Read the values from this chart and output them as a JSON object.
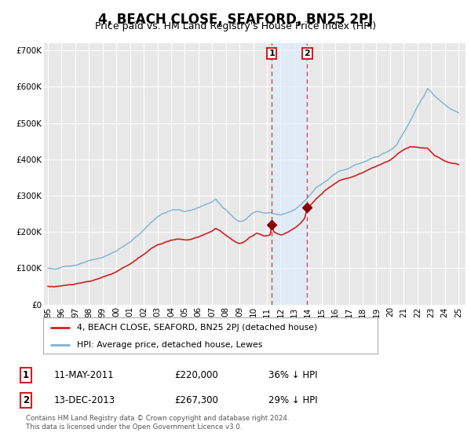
{
  "title": "4, BEACH CLOSE, SEAFORD, BN25 2PJ",
  "subtitle": "Price paid vs. HM Land Registry's House Price Index (HPI)",
  "title_fontsize": 12,
  "subtitle_fontsize": 9,
  "background_color": "#ffffff",
  "plot_bg_color": "#e8e8e8",
  "grid_color": "#ffffff",
  "ylim": [
    0,
    720000
  ],
  "yticks": [
    0,
    100000,
    200000,
    300000,
    400000,
    500000,
    600000,
    700000
  ],
  "ytick_labels": [
    "£0",
    "£100K",
    "£200K",
    "£300K",
    "£400K",
    "£500K",
    "£600K",
    "£700K"
  ],
  "hpi_color": "#7ab3d4",
  "price_color": "#cc2222",
  "marker_color": "#8b0000",
  "transaction1_x": 2011.36,
  "transaction2_x": 2013.95,
  "transaction1_price": 220000,
  "transaction2_price": 267300,
  "shade_color": "#ddeeff",
  "shade_alpha": 0.6,
  "legend_label1": "4, BEACH CLOSE, SEAFORD, BN25 2PJ (detached house)",
  "legend_label2": "HPI: Average price, detached house, Lewes",
  "table_row1_num": "1",
  "table_row1_date": "11-MAY-2011",
  "table_row1_price": "£220,000",
  "table_row1_hpi": "36% ↓ HPI",
  "table_row2_num": "2",
  "table_row2_date": "13-DEC-2013",
  "table_row2_price": "£267,300",
  "table_row2_hpi": "29% ↓ HPI",
  "footer": "Contains HM Land Registry data © Crown copyright and database right 2024.\nThis data is licensed under the Open Government Licence v3.0.",
  "xlim_start": 1994.7,
  "xlim_end": 2025.5,
  "hpi_points": [
    [
      1995,
      100000
    ],
    [
      1995.5,
      98000
    ],
    [
      1996,
      101000
    ],
    [
      1996.5,
      105000
    ],
    [
      1997,
      109000
    ],
    [
      1997.5,
      114000
    ],
    [
      1998,
      118000
    ],
    [
      1998.5,
      122000
    ],
    [
      1999,
      128000
    ],
    [
      1999.5,
      136000
    ],
    [
      2000,
      145000
    ],
    [
      2000.5,
      158000
    ],
    [
      2001,
      170000
    ],
    [
      2001.5,
      186000
    ],
    [
      2002,
      202000
    ],
    [
      2002.5,
      220000
    ],
    [
      2003,
      238000
    ],
    [
      2003.5,
      248000
    ],
    [
      2004,
      255000
    ],
    [
      2004.5,
      258000
    ],
    [
      2005,
      254000
    ],
    [
      2005.5,
      257000
    ],
    [
      2006,
      264000
    ],
    [
      2006.5,
      275000
    ],
    [
      2007,
      282000
    ],
    [
      2007.25,
      290000
    ],
    [
      2007.5,
      280000
    ],
    [
      2007.75,
      268000
    ],
    [
      2008,
      260000
    ],
    [
      2008.25,
      250000
    ],
    [
      2008.5,
      240000
    ],
    [
      2008.75,
      232000
    ],
    [
      2009,
      228000
    ],
    [
      2009.25,
      232000
    ],
    [
      2009.5,
      238000
    ],
    [
      2009.75,
      248000
    ],
    [
      2010,
      254000
    ],
    [
      2010.25,
      258000
    ],
    [
      2010.5,
      256000
    ],
    [
      2010.75,
      252000
    ],
    [
      2011,
      252000
    ],
    [
      2011.25,
      255000
    ],
    [
      2011.5,
      252000
    ],
    [
      2011.75,
      250000
    ],
    [
      2012,
      248000
    ],
    [
      2012.25,
      252000
    ],
    [
      2012.5,
      255000
    ],
    [
      2012.75,
      260000
    ],
    [
      2013,
      265000
    ],
    [
      2013.25,
      272000
    ],
    [
      2013.5,
      280000
    ],
    [
      2013.75,
      290000
    ],
    [
      2014,
      300000
    ],
    [
      2014.25,
      312000
    ],
    [
      2014.5,
      324000
    ],
    [
      2014.75,
      332000
    ],
    [
      2015,
      338000
    ],
    [
      2015.25,
      345000
    ],
    [
      2015.5,
      352000
    ],
    [
      2015.75,
      360000
    ],
    [
      2016,
      368000
    ],
    [
      2016.25,
      375000
    ],
    [
      2016.5,
      378000
    ],
    [
      2016.75,
      380000
    ],
    [
      2017,
      382000
    ],
    [
      2017.25,
      388000
    ],
    [
      2017.5,
      392000
    ],
    [
      2017.75,
      396000
    ],
    [
      2018,
      398000
    ],
    [
      2018.25,
      402000
    ],
    [
      2018.5,
      405000
    ],
    [
      2018.75,
      408000
    ],
    [
      2019,
      412000
    ],
    [
      2019.25,
      416000
    ],
    [
      2019.5,
      420000
    ],
    [
      2019.75,
      425000
    ],
    [
      2020,
      430000
    ],
    [
      2020.25,
      435000
    ],
    [
      2020.5,
      445000
    ],
    [
      2020.75,
      462000
    ],
    [
      2021,
      478000
    ],
    [
      2021.25,
      495000
    ],
    [
      2021.5,
      512000
    ],
    [
      2021.75,
      530000
    ],
    [
      2022,
      548000
    ],
    [
      2022.25,
      565000
    ],
    [
      2022.5,
      580000
    ],
    [
      2022.75,
      600000
    ],
    [
      2023,
      590000
    ],
    [
      2023.25,
      578000
    ],
    [
      2023.5,
      570000
    ],
    [
      2023.75,
      560000
    ],
    [
      2024,
      552000
    ],
    [
      2024.25,
      545000
    ],
    [
      2024.5,
      538000
    ],
    [
      2024.75,
      532000
    ],
    [
      2025,
      528000
    ]
  ],
  "price_points": [
    [
      1995,
      50000
    ],
    [
      1995.5,
      48000
    ],
    [
      1996,
      50000
    ],
    [
      1996.5,
      53000
    ],
    [
      1997,
      56000
    ],
    [
      1997.5,
      60000
    ],
    [
      1998,
      64000
    ],
    [
      1998.5,
      68000
    ],
    [
      1999,
      74000
    ],
    [
      1999.5,
      80000
    ],
    [
      2000,
      88000
    ],
    [
      2000.5,
      98000
    ],
    [
      2001,
      108000
    ],
    [
      2001.5,
      120000
    ],
    [
      2002,
      133000
    ],
    [
      2002.5,
      147000
    ],
    [
      2003,
      158000
    ],
    [
      2003.5,
      168000
    ],
    [
      2004,
      175000
    ],
    [
      2004.5,
      180000
    ],
    [
      2005,
      178000
    ],
    [
      2005.5,
      180000
    ],
    [
      2006,
      186000
    ],
    [
      2006.5,
      195000
    ],
    [
      2007,
      202000
    ],
    [
      2007.25,
      210000
    ],
    [
      2007.5,
      205000
    ],
    [
      2007.75,
      198000
    ],
    [
      2008,
      192000
    ],
    [
      2008.25,
      186000
    ],
    [
      2008.5,
      178000
    ],
    [
      2008.75,
      172000
    ],
    [
      2009,
      168000
    ],
    [
      2009.25,
      172000
    ],
    [
      2009.5,
      178000
    ],
    [
      2009.75,
      186000
    ],
    [
      2010,
      190000
    ],
    [
      2010.25,
      196000
    ],
    [
      2010.5,
      194000
    ],
    [
      2010.75,
      190000
    ],
    [
      2011,
      190000
    ],
    [
      2011.25,
      192000
    ],
    [
      2011.36,
      220000
    ],
    [
      2011.5,
      200000
    ],
    [
      2011.75,
      196000
    ],
    [
      2012,
      192000
    ],
    [
      2012.25,
      196000
    ],
    [
      2012.5,
      200000
    ],
    [
      2012.75,
      206000
    ],
    [
      2013,
      212000
    ],
    [
      2013.25,
      220000
    ],
    [
      2013.5,
      228000
    ],
    [
      2013.75,
      240000
    ],
    [
      2013.95,
      267300
    ],
    [
      2014,
      268000
    ],
    [
      2014.25,
      278000
    ],
    [
      2014.5,
      290000
    ],
    [
      2014.75,
      300000
    ],
    [
      2015,
      308000
    ],
    [
      2015.25,
      318000
    ],
    [
      2015.5,
      326000
    ],
    [
      2015.75,
      332000
    ],
    [
      2016,
      338000
    ],
    [
      2016.25,
      345000
    ],
    [
      2016.5,
      348000
    ],
    [
      2016.75,
      350000
    ],
    [
      2017,
      352000
    ],
    [
      2017.25,
      356000
    ],
    [
      2017.5,
      360000
    ],
    [
      2017.75,
      364000
    ],
    [
      2018,
      368000
    ],
    [
      2018.25,
      372000
    ],
    [
      2018.5,
      376000
    ],
    [
      2018.75,
      380000
    ],
    [
      2019,
      384000
    ],
    [
      2019.25,
      388000
    ],
    [
      2019.5,
      392000
    ],
    [
      2019.75,
      396000
    ],
    [
      2020,
      400000
    ],
    [
      2020.25,
      406000
    ],
    [
      2020.5,
      414000
    ],
    [
      2020.75,
      422000
    ],
    [
      2021,
      428000
    ],
    [
      2021.25,
      432000
    ],
    [
      2021.5,
      436000
    ],
    [
      2021.75,
      435000
    ],
    [
      2022,
      434000
    ],
    [
      2022.25,
      433000
    ],
    [
      2022.5,
      432000
    ],
    [
      2022.75,
      430000
    ],
    [
      2023,
      420000
    ],
    [
      2023.25,
      410000
    ],
    [
      2023.5,
      405000
    ],
    [
      2023.75,
      400000
    ],
    [
      2024,
      395000
    ],
    [
      2024.25,
      392000
    ],
    [
      2024.5,
      390000
    ],
    [
      2024.75,
      388000
    ],
    [
      2025,
      385000
    ]
  ]
}
